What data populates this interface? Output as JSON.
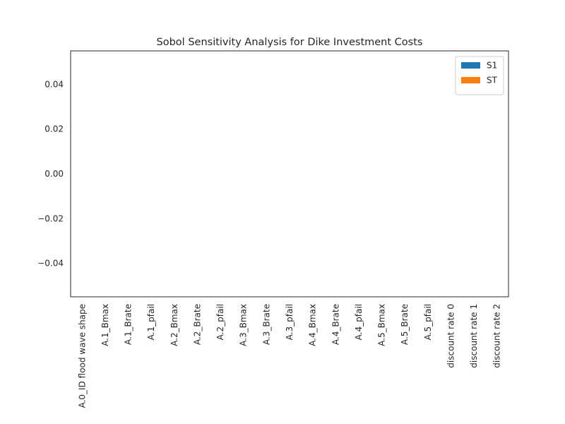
{
  "chart_data": {
    "type": "bar",
    "title": "Sobol Sensitivity Analysis for Dike Investment Costs",
    "categories": [
      "A.0_ID flood wave shape",
      "A.1_Bmax",
      "A.1_Brate",
      "A.1_pfail",
      "A.2_Bmax",
      "A.2_Brate",
      "A.2_pfail",
      "A.3_Bmax",
      "A.3_Brate",
      "A.3_pfail",
      "A.4_Bmax",
      "A.4_Brate",
      "A.4_pfail",
      "A.5_Bmax",
      "A.5_Brate",
      "A.5_pfail",
      "discount rate 0",
      "discount rate 1",
      "discount rate 2"
    ],
    "series": [
      {
        "name": "S1",
        "color": "#1f77b4",
        "values": [
          0,
          0,
          0,
          0,
          0,
          0,
          0,
          0,
          0,
          0,
          0,
          0,
          0,
          0,
          0,
          0,
          0,
          0,
          0
        ]
      },
      {
        "name": "ST",
        "color": "#ff7f0e",
        "values": [
          0,
          0,
          0,
          0,
          0,
          0,
          0,
          0,
          0,
          0,
          0,
          0,
          0,
          0,
          0,
          0,
          0,
          0,
          0
        ]
      }
    ],
    "ylim": [
      -0.055,
      0.055
    ],
    "yticks": [
      {
        "value": -0.04,
        "label": "−0.04"
      },
      {
        "value": -0.02,
        "label": "−0.02"
      },
      {
        "value": 0,
        "label": "0.00"
      },
      0.02,
      0.04
    ],
    "grid": false,
    "legend": "upper right"
  }
}
